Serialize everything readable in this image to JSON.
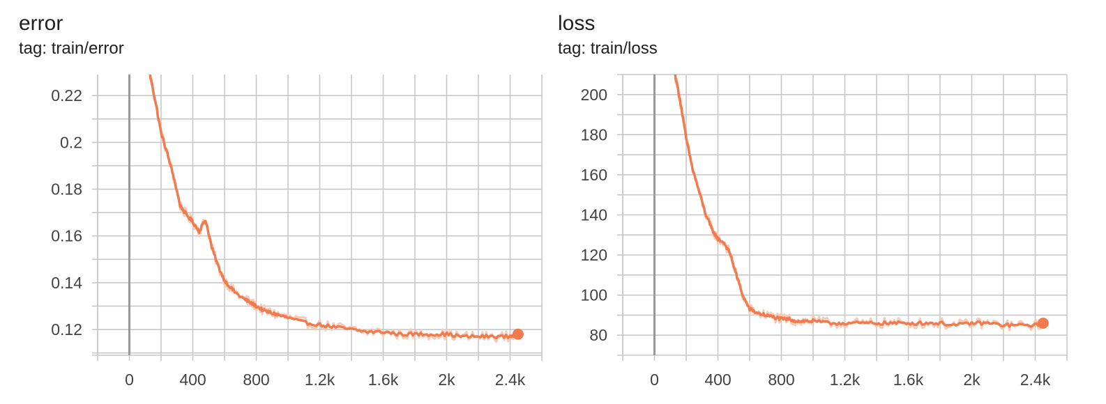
{
  "colors": {
    "series": "#ef7b4f",
    "series_raw": "#f8cbb8",
    "grid": "#c8c8c8",
    "zero_axis": "#999999",
    "text": "#212121"
  },
  "chart_data": [
    {
      "type": "line",
      "title": "error",
      "subtitle": "tag: train/error",
      "xlabel": "",
      "ylabel": "",
      "xlim": [
        -200,
        2600
      ],
      "ylim": [
        0.109,
        0.229
      ],
      "x_ticks": [
        0,
        400,
        800,
        1200,
        1600,
        2000,
        2400
      ],
      "x_tick_labels": [
        "0",
        "400",
        "800",
        "1.2k",
        "1.6k",
        "2k",
        "2.4k"
      ],
      "y_ticks": [
        0.12,
        0.14,
        0.16,
        0.18,
        0.2,
        0.22
      ],
      "y_tick_labels": [
        "0.12",
        "0.14",
        "0.16",
        "0.18",
        "0.2",
        "0.22"
      ],
      "grid": true,
      "series": [
        {
          "x": [
            130,
            160,
            200,
            240,
            280,
            320,
            360,
            400,
            440,
            480,
            520,
            560,
            600,
            650,
            700,
            750,
            800,
            850,
            900,
            950,
            1000,
            1100,
            1200,
            1300,
            1400,
            1500,
            1600,
            1700,
            1800,
            1900,
            2000,
            2100,
            2200,
            2300,
            2400,
            2450
          ],
          "values": [
            0.229,
            0.219,
            0.204,
            0.195,
            0.185,
            0.173,
            0.169,
            0.166,
            0.162,
            0.167,
            0.155,
            0.147,
            0.141,
            0.137,
            0.134,
            0.132,
            0.13,
            0.128,
            0.127,
            0.126,
            0.125,
            0.123,
            0.122,
            0.121,
            0.12,
            0.119,
            0.119,
            0.118,
            0.118,
            0.118,
            0.118,
            0.117,
            0.117,
            0.117,
            0.117,
            0.118
          ]
        }
      ]
    },
    {
      "type": "line",
      "title": "loss",
      "subtitle": "tag: train/loss",
      "xlabel": "",
      "ylabel": "",
      "xlim": [
        -200,
        2600
      ],
      "ylim": [
        70,
        210
      ],
      "x_ticks": [
        0,
        400,
        800,
        1200,
        1600,
        2000,
        2400
      ],
      "x_tick_labels": [
        "0",
        "400",
        "800",
        "1.2k",
        "1.6k",
        "2k",
        "2.4k"
      ],
      "y_ticks": [
        80,
        100,
        120,
        140,
        160,
        180,
        200
      ],
      "y_tick_labels": [
        "80",
        "100",
        "120",
        "140",
        "160",
        "180",
        "200"
      ],
      "grid": true,
      "series": [
        {
          "x": [
            130,
            160,
            200,
            240,
            280,
            320,
            360,
            400,
            440,
            480,
            520,
            560,
            600,
            650,
            700,
            750,
            800,
            850,
            900,
            950,
            1000,
            1100,
            1200,
            1300,
            1400,
            1500,
            1600,
            1700,
            1800,
            1900,
            2000,
            2100,
            2200,
            2300,
            2400,
            2450
          ],
          "values": [
            210,
            198,
            178,
            163,
            152,
            141,
            133,
            128,
            126,
            120,
            109,
            99,
            93,
            91,
            90,
            89,
            88,
            88,
            87,
            87,
            87,
            86,
            86,
            86,
            86,
            86,
            86,
            86,
            86,
            85,
            86,
            86,
            85,
            85,
            85,
            86
          ]
        }
      ]
    }
  ]
}
